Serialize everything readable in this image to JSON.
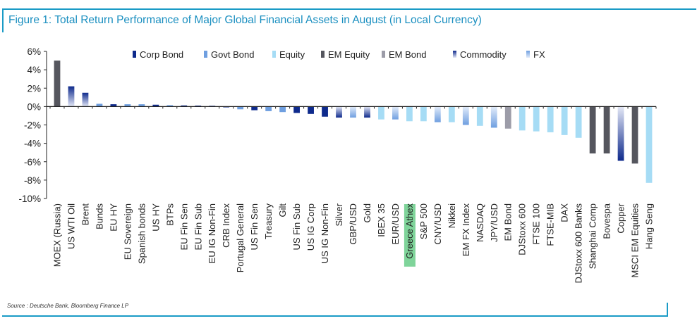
{
  "title": "Figure 1: Total Return Performance of Major Global Financial Assets in August (in Local Currency)",
  "source": "Source : Deutsche Bank, Bloomberg Finance LP",
  "colors": {
    "frame": "#1a9bc6",
    "title": "#1a8fc0",
    "highlight": "#7fd49a"
  },
  "chart_data": {
    "type": "bar",
    "ylim": [
      -10,
      6
    ],
    "yticks": [
      "6%",
      "4%",
      "2%",
      "0%",
      "-2%",
      "-4%",
      "-6%",
      "-8%",
      "-10%"
    ],
    "yticks_values": [
      6,
      4,
      2,
      0,
      -2,
      -4,
      -6,
      -8,
      -10
    ],
    "grid": false,
    "legend_placement": "top",
    "legend": [
      {
        "name": "Corp Bond",
        "color": "#0e2a8c",
        "light": "#0e2a8c"
      },
      {
        "name": "Govt Bond",
        "color": "#6f9fe0",
        "light": "#6f9fe0"
      },
      {
        "name": "Equity",
        "color": "#a6dcf5",
        "light": "#a6dcf5"
      },
      {
        "name": "EM Equity",
        "color": "#55565e",
        "light": "#55565e"
      },
      {
        "name": "EM Bond",
        "color": "#9c9ca8",
        "light": "#9c9ca8"
      },
      {
        "name": "Commodity",
        "color": "#0e2a8c",
        "light": "#e4e8f6"
      },
      {
        "name": "FX",
        "color": "#6f9fe0",
        "light": "#e3ecfa"
      }
    ],
    "highlighted_category": "Greece Athex",
    "bars": [
      {
        "label": "MOEX (Russia)",
        "value": 5.0,
        "group": "EM Equity"
      },
      {
        "label": "US WTI Oil",
        "value": 2.2,
        "group": "Commodity"
      },
      {
        "label": "Brent",
        "value": 1.5,
        "group": "Commodity"
      },
      {
        "label": "Bunds",
        "value": 0.3,
        "group": "Govt Bond"
      },
      {
        "label": "EU HY",
        "value": 0.25,
        "group": "Corp Bond"
      },
      {
        "label": "EU Sovereign",
        "value": 0.25,
        "group": "Govt Bond"
      },
      {
        "label": "Spanish bonds",
        "value": 0.25,
        "group": "Govt Bond"
      },
      {
        "label": "US HY",
        "value": 0.2,
        "group": "Corp Bond"
      },
      {
        "label": "BTPs",
        "value": 0.15,
        "group": "Govt Bond"
      },
      {
        "label": "EU Fin Sen",
        "value": 0.12,
        "group": "Corp Bond"
      },
      {
        "label": "EU Fin Sub",
        "value": 0.1,
        "group": "Corp Bond"
      },
      {
        "label": "EU IG Non-Fin",
        "value": 0.08,
        "group": "Corp Bond"
      },
      {
        "label": "CRB Index",
        "value": -0.1,
        "group": "Commodity"
      },
      {
        "label": "Portugal General",
        "value": -0.3,
        "group": "Govt Bond"
      },
      {
        "label": "US Fin Sen",
        "value": -0.4,
        "group": "Corp Bond"
      },
      {
        "label": "Treasury",
        "value": -0.5,
        "group": "Govt Bond"
      },
      {
        "label": "Gilt",
        "value": -0.6,
        "group": "Govt Bond"
      },
      {
        "label": "US Fin Sub",
        "value": -0.7,
        "group": "Corp Bond"
      },
      {
        "label": "US IG Corp",
        "value": -0.8,
        "group": "Corp Bond"
      },
      {
        "label": "US IG Non-Fin",
        "value": -1.1,
        "group": "Corp Bond"
      },
      {
        "label": "Silver",
        "value": -1.2,
        "group": "Commodity"
      },
      {
        "label": "GBP/USD",
        "value": -1.2,
        "group": "FX"
      },
      {
        "label": "Gold",
        "value": -1.2,
        "group": "Commodity"
      },
      {
        "label": "IBEX 35",
        "value": -1.4,
        "group": "Equity"
      },
      {
        "label": "EUR/USD",
        "value": -1.4,
        "group": "FX"
      },
      {
        "label": "Greece Athex",
        "value": -1.6,
        "group": "Equity"
      },
      {
        "label": "S&P 500",
        "value": -1.6,
        "group": "Equity"
      },
      {
        "label": "CNY/USD",
        "value": -1.7,
        "group": "FX"
      },
      {
        "label": "Nikkei",
        "value": -1.7,
        "group": "Equity"
      },
      {
        "label": "EM FX Index",
        "value": -2.0,
        "group": "FX"
      },
      {
        "label": "NASDAQ",
        "value": -2.1,
        "group": "Equity"
      },
      {
        "label": "JPY/USD",
        "value": -2.3,
        "group": "FX"
      },
      {
        "label": "EM Bond",
        "value": -2.4,
        "group": "EM Bond"
      },
      {
        "label": "DJStoxx 600",
        "value": -2.6,
        "group": "Equity"
      },
      {
        "label": "FTSE 100",
        "value": -2.7,
        "group": "Equity"
      },
      {
        "label": "FTSE-MIB",
        "value": -2.8,
        "group": "Equity"
      },
      {
        "label": "DAX",
        "value": -3.1,
        "group": "Equity"
      },
      {
        "label": "DJStoxx 600 Banks",
        "value": -3.4,
        "group": "Equity"
      },
      {
        "label": "Shanghai Comp",
        "value": -5.1,
        "group": "EM Equity"
      },
      {
        "label": "Bovespa",
        "value": -5.1,
        "group": "EM Equity"
      },
      {
        "label": "Copper",
        "value": -5.9,
        "group": "Commodity"
      },
      {
        "label": "MSCI EM Equities",
        "value": -6.2,
        "group": "EM Equity"
      },
      {
        "label": "Hang Seng",
        "value": -8.3,
        "group": "Equity"
      }
    ]
  }
}
